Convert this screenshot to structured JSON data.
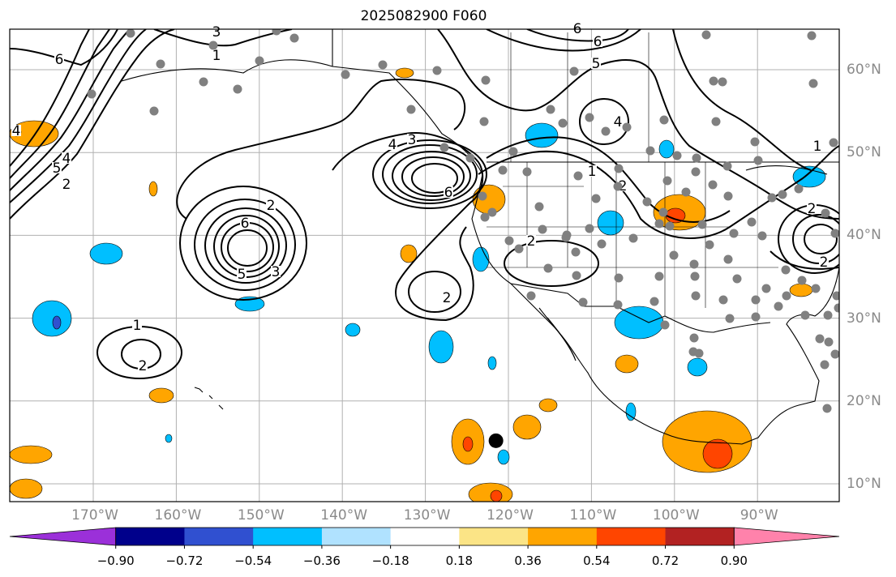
{
  "title": "2025082900 F060",
  "map": {
    "lon_range": [
      -180,
      -80
    ],
    "lat_range": [
      8,
      65
    ],
    "lon_ticks": [
      "170°W",
      "160°W",
      "150°W",
      "140°W",
      "130°W",
      "120°W",
      "110°W",
      "100°W",
      "90°W"
    ],
    "lat_ticks": [
      "60°N",
      "50°N",
      "40°N",
      "30°N",
      "20°N",
      "10°N"
    ],
    "contour_labels": [
      "6",
      "3",
      "1",
      "6",
      "5",
      "6",
      "5",
      "4",
      "2",
      "2",
      "6",
      "5",
      "3",
      "4",
      "3",
      "6",
      "2",
      "1",
      "2",
      "2",
      "1",
      "2",
      "1",
      "2",
      "4",
      "2",
      "4"
    ],
    "grid": true,
    "storm_marker": {
      "lon": -121.5,
      "lat": 15.2
    }
  },
  "colorbar": {
    "labels": [
      "−0.90",
      "−0.72",
      "−0.54",
      "−0.36",
      "−0.18",
      "0.18",
      "0.36",
      "0.54",
      "0.72",
      "0.90"
    ],
    "colors": [
      "#9b30d9",
      "#00008b",
      "#3050d0",
      "#00bfff",
      "#b0e2ff",
      "#ffffff",
      "#fbe486",
      "#ffa500",
      "#ff4500",
      "#b22222",
      "#ff82ab"
    ]
  }
}
